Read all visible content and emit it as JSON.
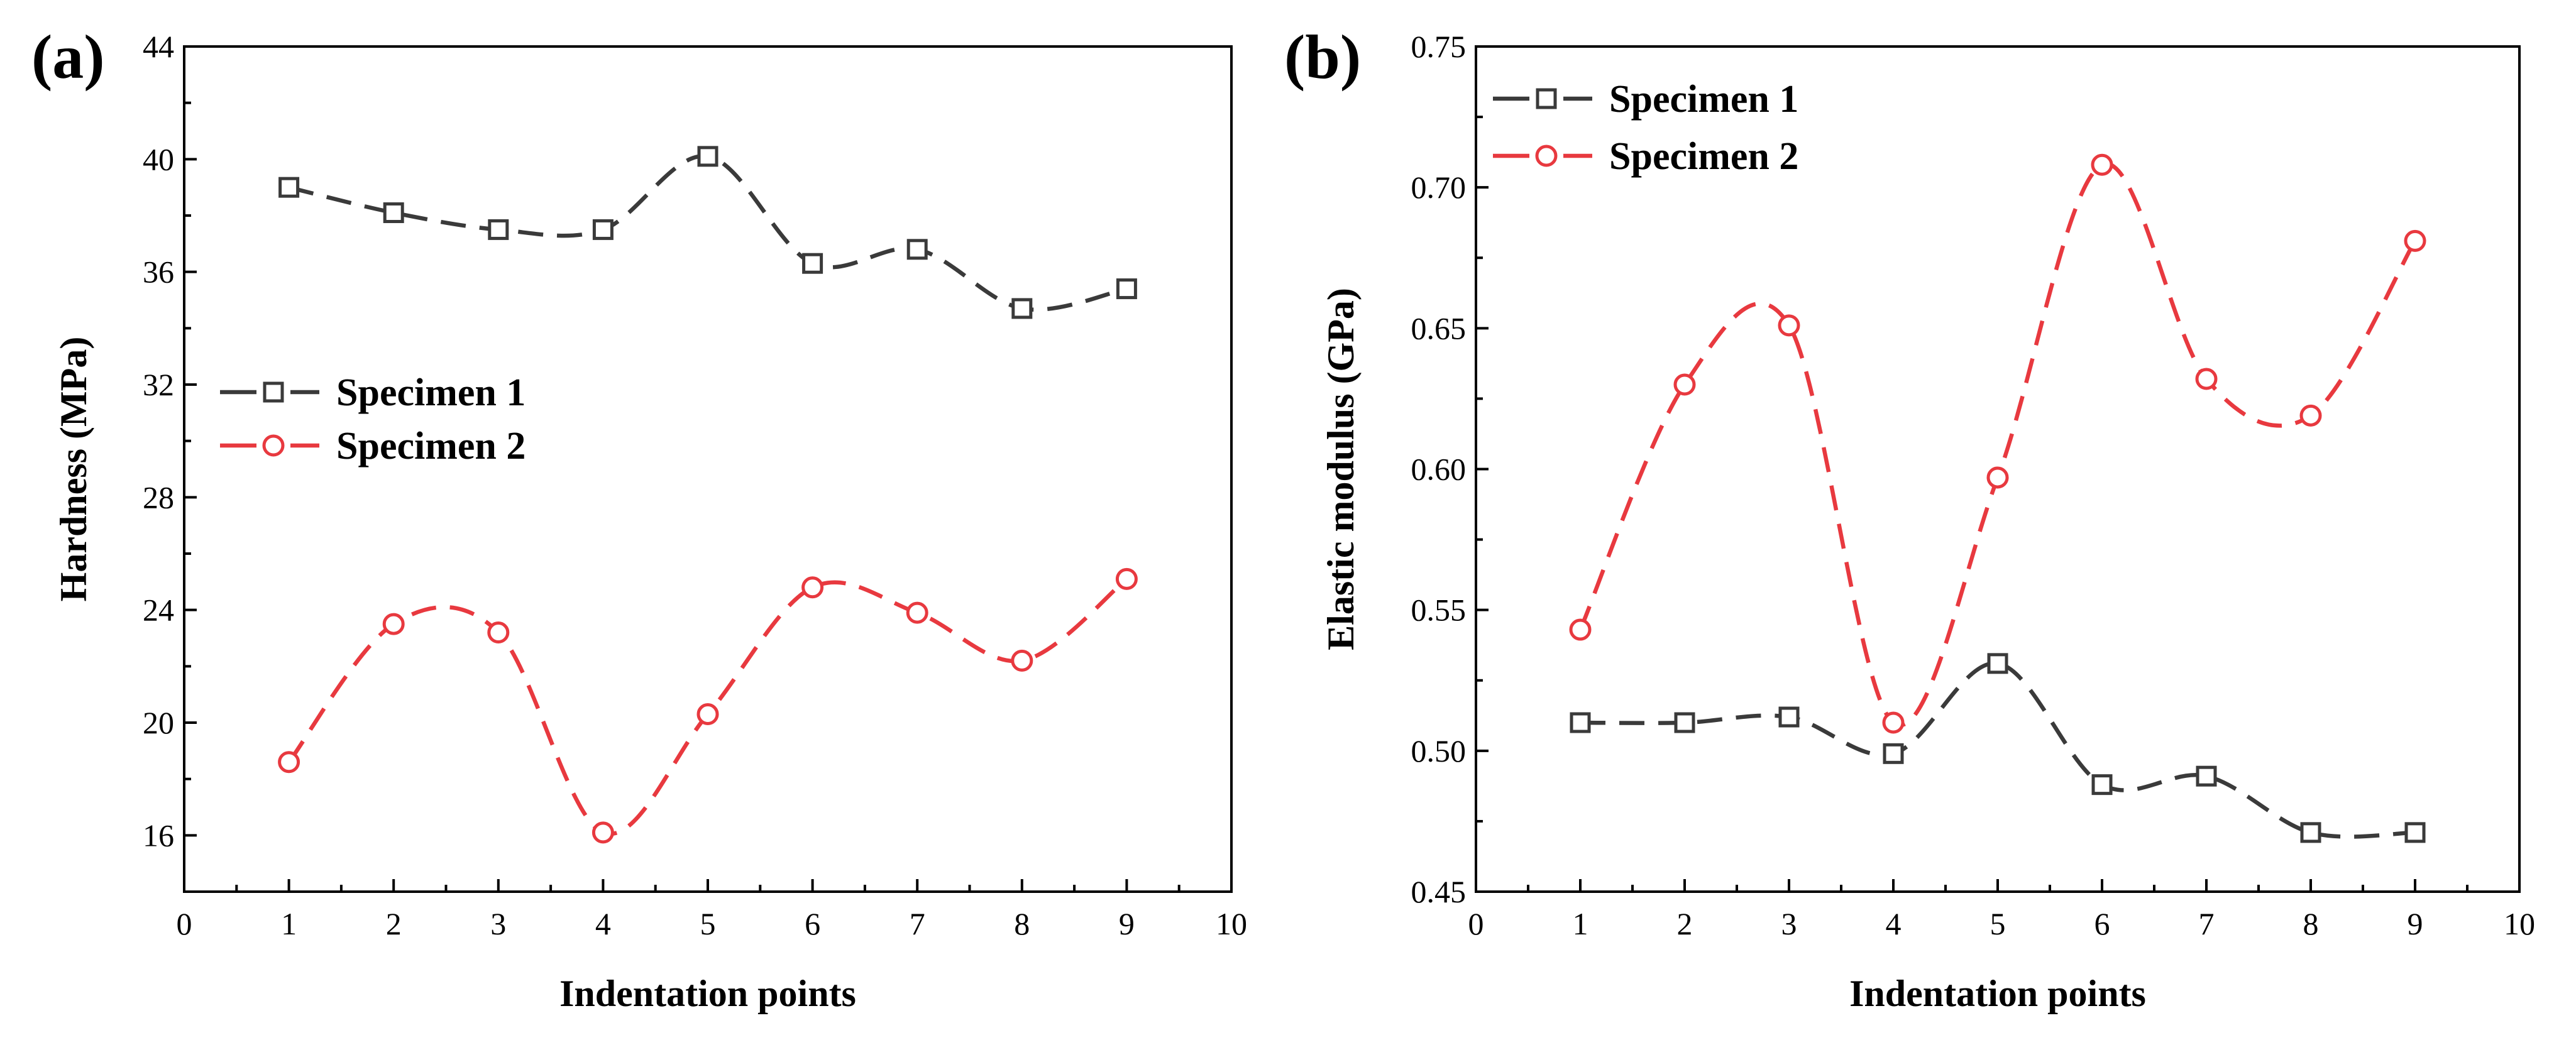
{
  "chart_data": [
    {
      "type": "line",
      "panel_label": "(a)",
      "xlabel": "Indentation points",
      "ylabel": "Hardness (MPa)",
      "xlim": [
        0,
        10
      ],
      "ylim": [
        14,
        44
      ],
      "x_ticks": [
        0,
        1,
        2,
        3,
        4,
        5,
        6,
        7,
        8,
        9,
        10
      ],
      "y_ticks": [
        16,
        20,
        24,
        28,
        32,
        36,
        40,
        44
      ],
      "legend_position": "middle-left",
      "x": [
        1,
        2,
        3,
        4,
        5,
        6,
        7,
        8,
        9
      ],
      "series": [
        {
          "name": "Specimen 1",
          "color": "#3a3a3a",
          "marker": "square",
          "values": [
            39.0,
            38.1,
            37.5,
            37.5,
            40.1,
            36.3,
            36.8,
            34.7,
            35.4
          ]
        },
        {
          "name": "Specimen 2",
          "color": "#e8393f",
          "marker": "circle",
          "values": [
            18.6,
            23.5,
            23.2,
            16.1,
            20.3,
            24.8,
            23.9,
            22.2,
            25.1
          ]
        }
      ]
    },
    {
      "type": "line",
      "panel_label": "(b)",
      "xlabel": "Indentation points",
      "ylabel": "Elastic modulus (GPa)",
      "xlim": [
        0,
        10
      ],
      "ylim": [
        0.45,
        0.75
      ],
      "x_ticks": [
        0,
        1,
        2,
        3,
        4,
        5,
        6,
        7,
        8,
        9,
        10
      ],
      "y_ticks": [
        "0.45",
        "0.50",
        "0.55",
        "0.60",
        "0.65",
        "0.70",
        "0.75"
      ],
      "legend_position": "top-left",
      "x": [
        1,
        2,
        3,
        4,
        5,
        6,
        7,
        8,
        9
      ],
      "series": [
        {
          "name": "Specimen 1",
          "color": "#3a3a3a",
          "marker": "square",
          "values": [
            0.51,
            0.51,
            0.512,
            0.499,
            0.531,
            0.488,
            0.491,
            0.471,
            0.471
          ]
        },
        {
          "name": "Specimen 2",
          "color": "#e8393f",
          "marker": "circle",
          "values": [
            0.543,
            0.63,
            0.651,
            0.51,
            0.597,
            0.708,
            0.632,
            0.619,
            0.681
          ]
        }
      ]
    }
  ]
}
